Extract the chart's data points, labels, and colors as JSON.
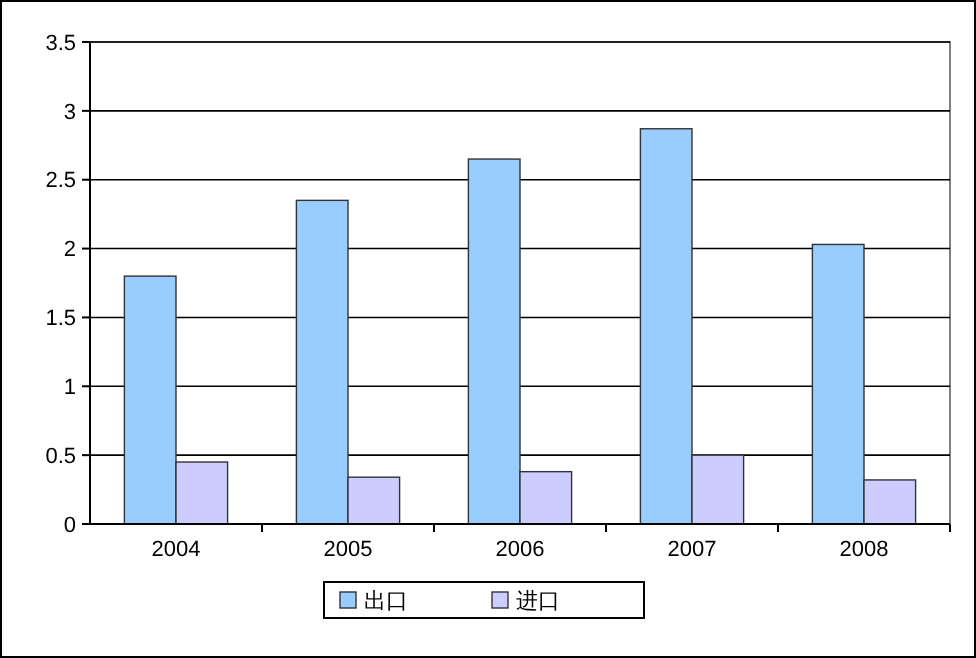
{
  "chart_data": {
    "type": "bar",
    "categories": [
      "2004",
      "2005",
      "2006",
      "2007",
      "2008"
    ],
    "series": [
      {
        "name": "出口",
        "color": "#99ccff",
        "values": [
          1.8,
          2.35,
          2.65,
          2.87,
          2.03
        ]
      },
      {
        "name": "进口",
        "color": "#ccccff",
        "values": [
          0.45,
          0.34,
          0.38,
          0.5,
          0.32
        ]
      }
    ],
    "ylim": [
      0,
      3.5
    ],
    "yticks": [
      0,
      0.5,
      1,
      1.5,
      2,
      2.5,
      3,
      3.5
    ],
    "grid": "y",
    "legend": "bottom"
  }
}
